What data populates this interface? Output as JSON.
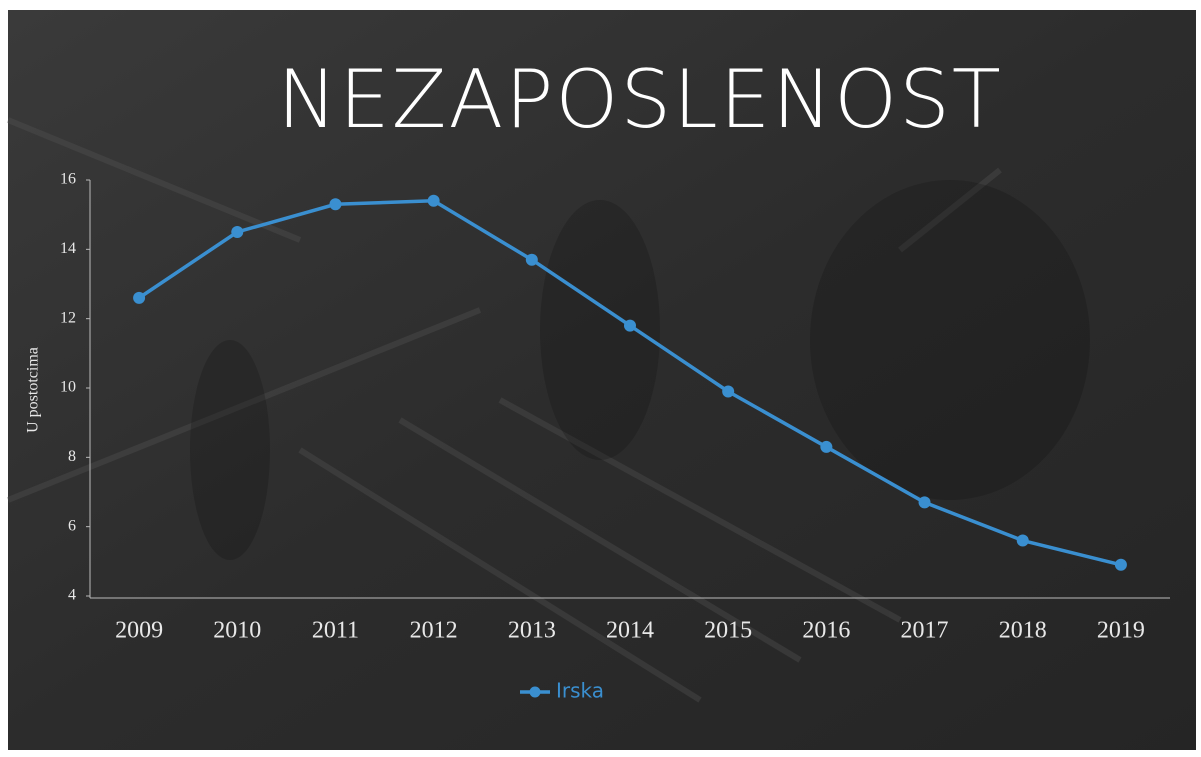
{
  "chart_data": {
    "type": "line",
    "title": "NEZAPOSLENOST",
    "y_label": "U postotcima",
    "categories": [
      "2009",
      "2010",
      "2011",
      "2012",
      "2013",
      "2014",
      "2015",
      "2016",
      "2017",
      "2018",
      "2019"
    ],
    "series": [
      {
        "name": "Irska",
        "color": "#3a8fd0",
        "values": [
          12.6,
          14.5,
          15.3,
          15.4,
          13.7,
          11.8,
          9.9,
          8.3,
          6.7,
          5.6,
          4.9
        ]
      }
    ],
    "ylim": [
      4,
      16
    ],
    "yticks": [
      4,
      6,
      8,
      10,
      12,
      14,
      16
    ],
    "grid": false,
    "legend": "bottom"
  }
}
